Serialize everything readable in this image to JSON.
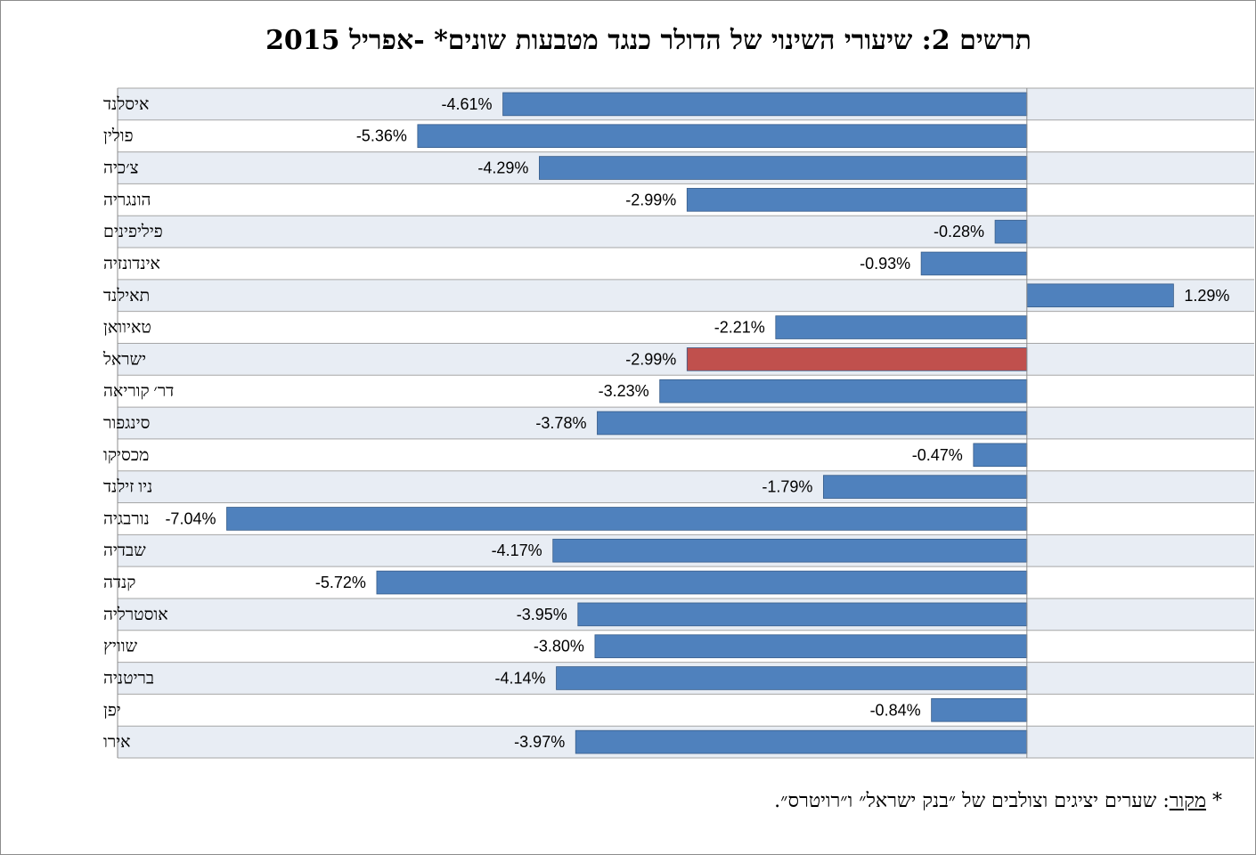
{
  "chart_data": {
    "type": "bar",
    "orientation": "horizontal",
    "title": "תרשים 2: שיעורי השינוי של הדולר כנגד מטבעות שונים* -אפריל 2015",
    "categories": [
      "איסלנד",
      "פולין",
      "צ׳כיה",
      "הונגריה",
      "פיליפינים",
      "אינדונזיה",
      "תאילנד",
      "טאיוואן",
      "ישראל",
      "דר׳ קוריאה",
      "סינגפור",
      "מכסיקו",
      "ניו זילנד",
      "נורבגיה",
      "שבדיה",
      "קנדה",
      "אוסטרליה",
      "שוויץ",
      "בריטניה",
      "יפן",
      "אירו"
    ],
    "values": [
      -4.61,
      -5.36,
      -4.29,
      -2.99,
      -0.28,
      -0.93,
      1.29,
      -2.21,
      -2.99,
      -3.23,
      -3.78,
      -0.47,
      -1.79,
      -7.04,
      -4.17,
      -5.72,
      -3.95,
      -3.8,
      -4.14,
      -0.84,
      -3.97
    ],
    "value_labels": [
      "-4.61%",
      "-5.36%",
      "-4.29%",
      "-2.99%",
      "-0.28%",
      "-0.93%",
      "1.29%",
      "-2.21%",
      "-2.99%",
      "-3.23%",
      "-3.78%",
      "-0.47%",
      "-1.79%",
      "-7.04%",
      "-4.17%",
      "-5.72%",
      "-3.95%",
      "-3.80%",
      "-4.14%",
      "-0.84%",
      "-3.97%"
    ],
    "highlight_category": "ישראל",
    "xlim": [
      -8,
      2
    ],
    "xlabel": "",
    "ylabel": "",
    "colors": {
      "bar": "#4F81BD",
      "highlight": "#C0504D",
      "band": "#E8EDF4",
      "gridline": "#A6A6A6"
    }
  },
  "footnote": {
    "star": "*",
    "source_word": "מקור",
    "colon": ":",
    "text": " שערים יציגים וצולבים של ״בנק ישראל״ ו״רויטרס״."
  }
}
